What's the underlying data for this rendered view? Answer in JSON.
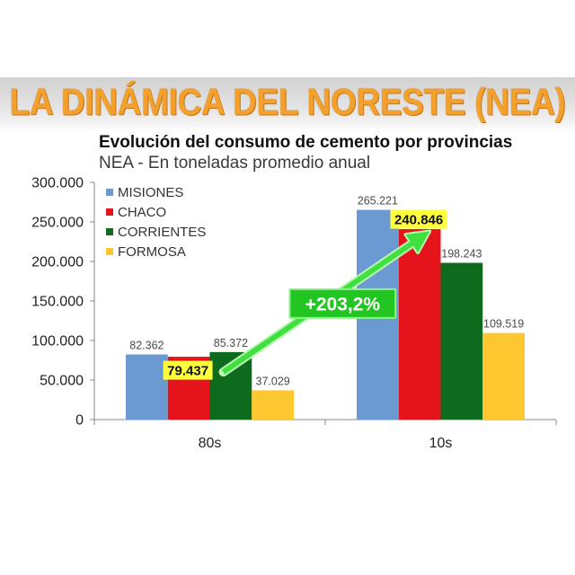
{
  "banner": {
    "title": "LA DINÁMICA DEL NORESTE (NEA)",
    "color": "#F3A12C"
  },
  "chart_data": {
    "type": "bar",
    "title": "Evolución del consumo de cemento por provincias",
    "subtitle": "NEA - En toneladas promedio anual",
    "categories": [
      "80s",
      "10s"
    ],
    "ylim": [
      0,
      300000
    ],
    "yticks": [
      0,
      50000,
      100000,
      150000,
      200000,
      250000,
      300000
    ],
    "ytick_labels": [
      "0",
      "50.000",
      "100.000",
      "150.000",
      "200.000",
      "250.000",
      "300.000"
    ],
    "grid": false,
    "legend_position": "top-left",
    "series": [
      {
        "name": "MISIONES",
        "color": "#6A9AD1",
        "values": [
          82362,
          265221
        ],
        "labels": [
          "82.362",
          "265.221"
        ],
        "highlight": false
      },
      {
        "name": "CHACO",
        "color": "#E5141B",
        "values": [
          79437,
          240846
        ],
        "labels": [
          "79.437",
          "240.846"
        ],
        "highlight": true
      },
      {
        "name": "CORRIENTES",
        "color": "#0E6B1E",
        "values": [
          85372,
          198243
        ],
        "labels": [
          "85.372",
          "198.243"
        ],
        "highlight": false
      },
      {
        "name": "FORMOSA",
        "color": "#FFC730",
        "values": [
          37029,
          109519
        ],
        "labels": [
          "37.029",
          "109.519"
        ],
        "highlight": false
      }
    ],
    "highlight_color": "#FFFF3C",
    "annotation": {
      "text": "+203,2%",
      "series_index": 1,
      "color": "#22C522",
      "arrow_color": "#3FE03F",
      "text_color": "#FFFFFF"
    }
  }
}
